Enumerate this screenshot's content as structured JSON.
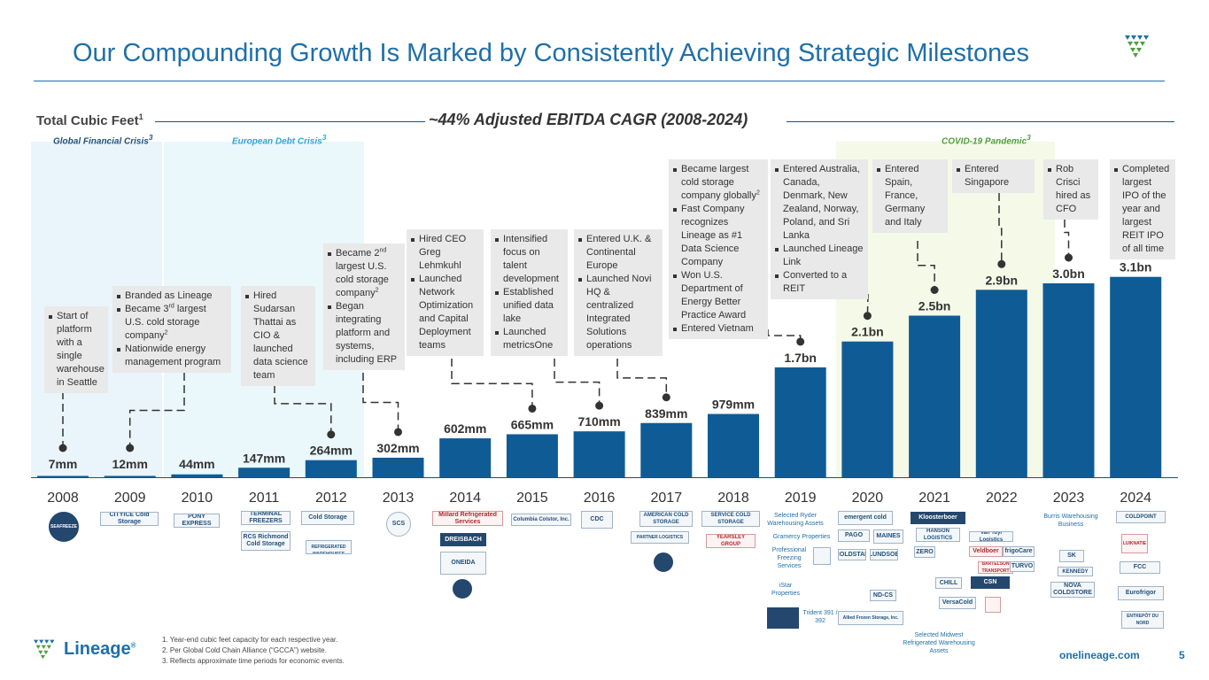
{
  "slide": {
    "title": "Our Compounding Growth Is Marked by Consistently Achieving Strategic Milestones",
    "total_cubic_feet": "Total Cubic Feet",
    "total_cubic_feet_note": "1",
    "cagr": "~44% Adjusted EBITDA CAGR (2008-2024)",
    "website": "onelineage.com",
    "page_number": "5",
    "brand": "Lineage",
    "brand_mark": "®"
  },
  "eras": [
    {
      "label": "Global Financial Crisis",
      "note": "3",
      "color": "#1f4f7a"
    },
    {
      "label": "European Debt Crisis",
      "note": "3",
      "color": "#2aa6d6"
    },
    {
      "label": "COVID-19 Pandemic",
      "note": "3",
      "color": "#4f9f3a"
    }
  ],
  "chart_data": {
    "type": "bar",
    "categories": [
      "2008",
      "2009",
      "2010",
      "2011",
      "2012",
      "2013",
      "2014",
      "2015",
      "2016",
      "2017",
      "2018",
      "2019",
      "2020",
      "2021",
      "2022",
      "2023",
      "2024"
    ],
    "values": [
      7,
      12,
      44,
      147,
      264,
      302,
      602,
      665,
      710,
      839,
      979,
      1700,
      2100,
      2500,
      2900,
      3000,
      3100
    ],
    "value_labels": [
      "7mm",
      "12mm",
      "44mm",
      "147mm",
      "264mm",
      "302mm",
      "602mm",
      "665mm",
      "710mm",
      "839mm",
      "979mm",
      "1.7bn",
      "2.1bn",
      "2.5bn",
      "2.9bn",
      "3.0bn",
      "3.1bn"
    ],
    "unit": "million cubic feet",
    "ylim": [
      0,
      3300
    ],
    "bar_color": "#0f5b96",
    "xlabel": "",
    "ylabel": "",
    "grid": false
  },
  "callouts": [
    {
      "items": [
        [
          "Start of platform with a single warehouse in Seattle"
        ]
      ]
    },
    {
      "items": [
        [
          "Branded as Lineage"
        ],
        [
          "Became 3",
          "rd",
          " largest U.S. cold storage company",
          "2"
        ],
        [
          "Nationwide energy management program"
        ]
      ]
    },
    {
      "items": [
        [
          "Hired Sudarsan Thattai as CIO & launched data science team"
        ]
      ]
    },
    {
      "items": [
        [
          "Became 2",
          "nd",
          " largest U.S. cold storage company",
          "2"
        ],
        [
          "Began integrating platform and systems, including ERP"
        ]
      ]
    },
    {
      "items": [
        [
          "Hired CEO Greg Lehmkuhl"
        ],
        [
          "Launched Network Optimization and Capital Deployment teams"
        ]
      ]
    },
    {
      "items": [
        [
          "Intensified focus on talent development"
        ],
        [
          "Established unified data lake"
        ],
        [
          "Launched metricsOne"
        ]
      ]
    },
    {
      "items": [
        [
          "Entered U.K. & Continental Europe"
        ],
        [
          "Launched Novi HQ & centralized Integrated Solutions operations"
        ]
      ]
    },
    {
      "items": [
        [
          "Became largest cold storage company globally",
          "2"
        ],
        [
          "Fast Company recognizes Lineage as #1 Data Science Company"
        ],
        [
          "Won U.S. Department of Energy Better Practice Award"
        ],
        [
          "Entered Vietnam"
        ]
      ]
    },
    {
      "items": [
        [
          "Entered Australia, Canada, Denmark, New Zealand, Norway, Poland, and Sri Lanka"
        ],
        [
          "Launched Lineage Link"
        ],
        [
          "Converted to a REIT"
        ]
      ]
    },
    {
      "items": [
        [
          "Entered Spain, France, Germany and Italy"
        ]
      ]
    },
    {
      "items": [
        [
          "Entered Singapore"
        ]
      ]
    },
    {
      "items": [
        [
          "Rob Crisci hired as CFO"
        ]
      ]
    },
    {
      "items": [
        [
          "Completed largest IPO of the year and largest REIT IPO of all time"
        ]
      ]
    }
  ],
  "logos": [
    {
      "text": "SEAFREEZE"
    },
    {
      "text": "CITYICE Cold Storage"
    },
    {
      "text": "PONY EXPRESS"
    },
    {
      "text": "TERMINAL FREEZERS"
    },
    {
      "text": "RCS Richmond Cold Storage"
    },
    {
      "text": "Cold Storage"
    },
    {
      "text": "STANFORD REFRIGERATED WAREHOUSES"
    },
    {
      "text": "SCS"
    },
    {
      "text": "Millard Refrigerated Services"
    },
    {
      "text": "DREISBACH"
    },
    {
      "text": "ONEIDA"
    },
    {
      "text": "Columbia Colstor, Inc."
    },
    {
      "text": "CDC"
    },
    {
      "text": "AMERICAN COLD STORAGE"
    },
    {
      "text": "PARTNER LOGISTICS"
    },
    {
      "text": "SERVICE COLD STORAGE"
    },
    {
      "text": "YEARSLEY GROUP"
    },
    {
      "text": "Selected Ryder Warehousing Assets"
    },
    {
      "text": "Gramercy Properties"
    },
    {
      "text": "Professional Freezing Services"
    },
    {
      "text": "iStar Properties"
    },
    {
      "text": "Trident 391 / 392"
    },
    {
      "text": "emergent cold"
    },
    {
      "text": "PAGO"
    },
    {
      "text": "MAINES"
    },
    {
      "text": "COLDSTAR"
    },
    {
      "text": "LUNDSOE"
    },
    {
      "text": "ND-CS"
    },
    {
      "text": "Allied Frozen Storage, Inc."
    },
    {
      "text": "Kloosterboer"
    },
    {
      "text": "HANSON LOGISTICS"
    },
    {
      "text": "ZERO"
    },
    {
      "text": "CHILL"
    },
    {
      "text": "VersaCold"
    },
    {
      "text": "Selected Midwest Refrigerated Warehousing Assets"
    },
    {
      "text": "Van Tuyl Logistics"
    },
    {
      "text": "Veldboer"
    },
    {
      "text": "frigoCare"
    },
    {
      "text": "BARTELSON TRANSPORT"
    },
    {
      "text": "TURVO"
    },
    {
      "text": "CSN"
    },
    {
      "text": "Burris Warehousing Business"
    },
    {
      "text": "SK"
    },
    {
      "text": "KENNEDY"
    },
    {
      "text": "NOVA COLDSTORE"
    },
    {
      "text": "COLDPOINT"
    },
    {
      "text": "LUIKNATIE"
    },
    {
      "text": "FCC"
    },
    {
      "text": "Eurofrigor"
    },
    {
      "text": "ENTREPÔT DU NORD"
    }
  ],
  "footnotes": [
    "1. Year-end cubic feet capacity for each respective year.",
    "2. Per Global Cold Chain Alliance (“GCCA”) website.",
    "3. Reflects approximate time periods for economic events."
  ]
}
